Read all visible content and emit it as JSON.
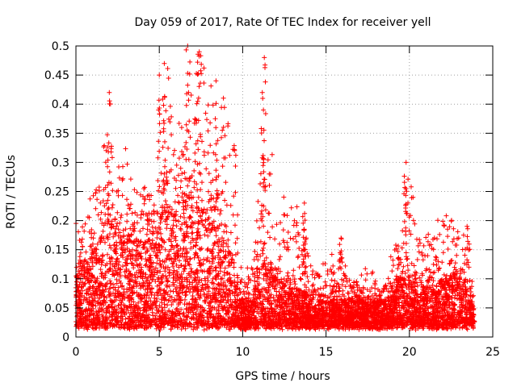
{
  "chart_data": {
    "type": "scatter",
    "title": "Day 059 of 2017, Rate Of TEC Index for receiver yell",
    "xlabel": "GPS time / hours",
    "ylabel": "ROTI / TECUs",
    "xlim": [
      0,
      25
    ],
    "ylim": [
      0,
      0.5
    ],
    "x_ticks": [
      0,
      5,
      10,
      15,
      20,
      25
    ],
    "y_ticks": [
      0,
      0.05,
      0.1,
      0.15,
      0.2,
      0.25,
      0.3,
      0.35,
      0.4,
      0.45,
      0.5
    ],
    "grid": true,
    "marker": "+",
    "color": "#ff0000",
    "x_range_of_data": [
      0,
      23.9
    ],
    "series": [
      {
        "envelope_hourly": {
          "x": [
            0,
            0.5,
            1,
            1.5,
            2,
            2.5,
            3,
            3.5,
            4,
            4.5,
            5,
            5.5,
            6,
            6.5,
            7,
            7.5,
            8,
            8.5,
            9,
            9.5,
            10,
            10.5,
            11,
            11.5,
            12,
            12.5,
            13,
            13.5,
            14,
            14.5,
            15,
            15.5,
            16,
            16.5,
            17,
            17.5,
            18,
            18.5,
            19,
            19.5,
            20,
            20.5,
            21,
            21.5,
            22,
            22.5,
            23,
            23.5,
            23.9
          ],
          "upper": [
            0.2,
            0.19,
            0.26,
            0.29,
            0.42,
            0.3,
            0.37,
            0.26,
            0.26,
            0.28,
            0.45,
            0.47,
            0.33,
            0.43,
            0.5,
            0.49,
            0.43,
            0.44,
            0.4,
            0.35,
            0.14,
            0.16,
            0.25,
            0.48,
            0.2,
            0.26,
            0.22,
            0.23,
            0.13,
            0.12,
            0.14,
            0.15,
            0.17,
            0.1,
            0.1,
            0.13,
            0.1,
            0.09,
            0.16,
            0.17,
            0.3,
            0.17,
            0.18,
            0.19,
            0.22,
            0.21,
            0.21,
            0.2,
            0.05
          ],
          "dense_top": [
            0.1,
            0.12,
            0.14,
            0.17,
            0.2,
            0.18,
            0.17,
            0.16,
            0.15,
            0.17,
            0.2,
            0.22,
            0.2,
            0.23,
            0.24,
            0.22,
            0.2,
            0.18,
            0.16,
            0.12,
            0.06,
            0.06,
            0.12,
            0.13,
            0.1,
            0.09,
            0.08,
            0.08,
            0.06,
            0.06,
            0.06,
            0.06,
            0.06,
            0.06,
            0.06,
            0.06,
            0.06,
            0.06,
            0.07,
            0.1,
            0.1,
            0.09,
            0.08,
            0.08,
            0.1,
            0.1,
            0.1,
            0.09,
            0.04
          ]
        },
        "notable_points": [
          {
            "x": 2.0,
            "y": 0.42
          },
          {
            "x": 5.0,
            "y": 0.45
          },
          {
            "x": 5.3,
            "y": 0.47
          },
          {
            "x": 6.7,
            "y": 0.5
          },
          {
            "x": 7.4,
            "y": 0.49
          },
          {
            "x": 8.4,
            "y": 0.44
          },
          {
            "x": 11.3,
            "y": 0.48
          },
          {
            "x": 11.2,
            "y": 0.41
          },
          {
            "x": 19.8,
            "y": 0.3
          },
          {
            "x": 13.7,
            "y": 0.23
          },
          {
            "x": 15.9,
            "y": 0.17
          }
        ]
      }
    ]
  }
}
